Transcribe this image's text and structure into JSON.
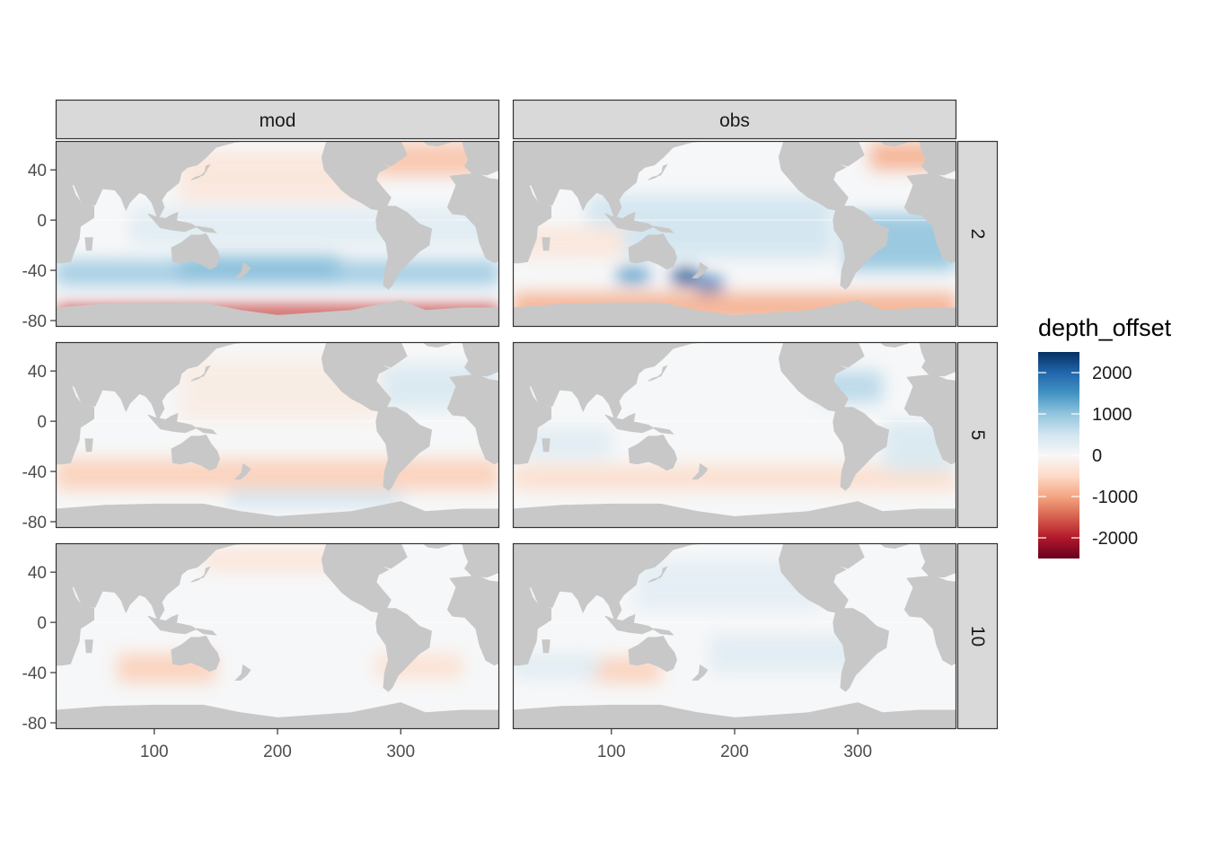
{
  "chart_data": {
    "type": "heatmap",
    "title": "",
    "xlabel": "",
    "ylabel": "",
    "facet_columns": [
      "mod",
      "obs"
    ],
    "facet_rows": [
      "2",
      "5",
      "10"
    ],
    "x_ticks": [
      100,
      200,
      300
    ],
    "y_ticks": [
      40,
      0,
      -40,
      -80
    ],
    "xlim": [
      20,
      380
    ],
    "ylim": [
      -85,
      63
    ],
    "grid": true,
    "legend": {
      "title": "depth_offset",
      "placement": "right",
      "ticks": [
        2000,
        1000,
        0,
        -1000,
        -2000
      ],
      "limits": [
        -2500,
        2500
      ],
      "colors": [
        "#67001f",
        "#b2182b",
        "#d6604d",
        "#f4a582",
        "#fddbc7",
        "#f7f7f7",
        "#d1e5f0",
        "#92c5de",
        "#4393c3",
        "#2166ac",
        "#053061"
      ]
    },
    "panels": [
      {
        "column": "mod",
        "row": "2",
        "features": [
          {
            "lon": [
              20,
              380
            ],
            "lat": [
              -52,
              -32
            ],
            "value": 900
          },
          {
            "lon": [
              120,
              250
            ],
            "lat": [
              -48,
              -28
            ],
            "value": 1100
          },
          {
            "lon": [
              20,
              380
            ],
            "lat": [
              -82,
              -68
            ],
            "value": -1700
          },
          {
            "lon": [
              280,
              365
            ],
            "lat": [
              35,
              62
            ],
            "value": -700
          },
          {
            "lon": [
              120,
              280
            ],
            "lat": [
              15,
              55
            ],
            "value": -300
          },
          {
            "lon": [
              80,
              380
            ],
            "lat": [
              -20,
              10
            ],
            "value": 300
          }
        ]
      },
      {
        "column": "obs",
        "row": "2",
        "features": [
          {
            "lon": [
              150,
              170
            ],
            "lat": [
              -52,
              -38
            ],
            "value": 2200
          },
          {
            "lon": [
              170,
              190
            ],
            "lat": [
              -58,
              -45
            ],
            "value": 1800
          },
          {
            "lon": [
              105,
              130
            ],
            "lat": [
              -50,
              -38
            ],
            "value": 1500
          },
          {
            "lon": [
              290,
              380
            ],
            "lat": [
              -40,
              5
            ],
            "value": 1000
          },
          {
            "lon": [
              80,
              280
            ],
            "lat": [
              -30,
              20
            ],
            "value": 500
          },
          {
            "lon": [
              20,
              380
            ],
            "lat": [
              -82,
              -58
            ],
            "value": -900
          },
          {
            "lon": [
              310,
              365
            ],
            "lat": [
              40,
              62
            ],
            "value": -900
          },
          {
            "lon": [
              20,
              110
            ],
            "lat": [
              -30,
              -5
            ],
            "value": -300
          }
        ]
      },
      {
        "column": "mod",
        "row": "5",
        "features": [
          {
            "lon": [
              20,
              380
            ],
            "lat": [
              -55,
              -30
            ],
            "value": -600
          },
          {
            "lon": [
              160,
              300
            ],
            "lat": [
              -68,
              -55
            ],
            "value": 500
          },
          {
            "lon": [
              120,
              280
            ],
            "lat": [
              0,
              50
            ],
            "value": -200
          },
          {
            "lon": [
              285,
              380
            ],
            "lat": [
              10,
              45
            ],
            "value": 400
          }
        ]
      },
      {
        "column": "obs",
        "row": "5",
        "features": [
          {
            "lon": [
              20,
              380
            ],
            "lat": [
              -55,
              -35
            ],
            "value": -450
          },
          {
            "lon": [
              270,
              320
            ],
            "lat": [
              15,
              40
            ],
            "value": 700
          },
          {
            "lon": [
              320,
              380
            ],
            "lat": [
              -40,
              0
            ],
            "value": 400
          },
          {
            "lon": [
              30,
              100
            ],
            "lat": [
              -30,
              -5
            ],
            "value": 300
          }
        ]
      },
      {
        "column": "mod",
        "row": "10",
        "features": [
          {
            "lon": [
              70,
              150
            ],
            "lat": [
              -48,
              -25
            ],
            "value": -600
          },
          {
            "lon": [
              280,
              350
            ],
            "lat": [
              -45,
              -25
            ],
            "value": -400
          },
          {
            "lon": [
              140,
              280
            ],
            "lat": [
              40,
              60
            ],
            "value": -300
          }
        ]
      },
      {
        "column": "obs",
        "row": "10",
        "features": [
          {
            "lon": [
              80,
              140
            ],
            "lat": [
              -48,
              -28
            ],
            "value": -600
          },
          {
            "lon": [
              120,
              270
            ],
            "lat": [
              10,
              50
            ],
            "value": 250
          },
          {
            "lon": [
              180,
              300
            ],
            "lat": [
              -40,
              -10
            ],
            "value": 300
          },
          {
            "lon": [
              20,
              90
            ],
            "lat": [
              -45,
              -25
            ],
            "value": 300
          }
        ]
      }
    ]
  }
}
